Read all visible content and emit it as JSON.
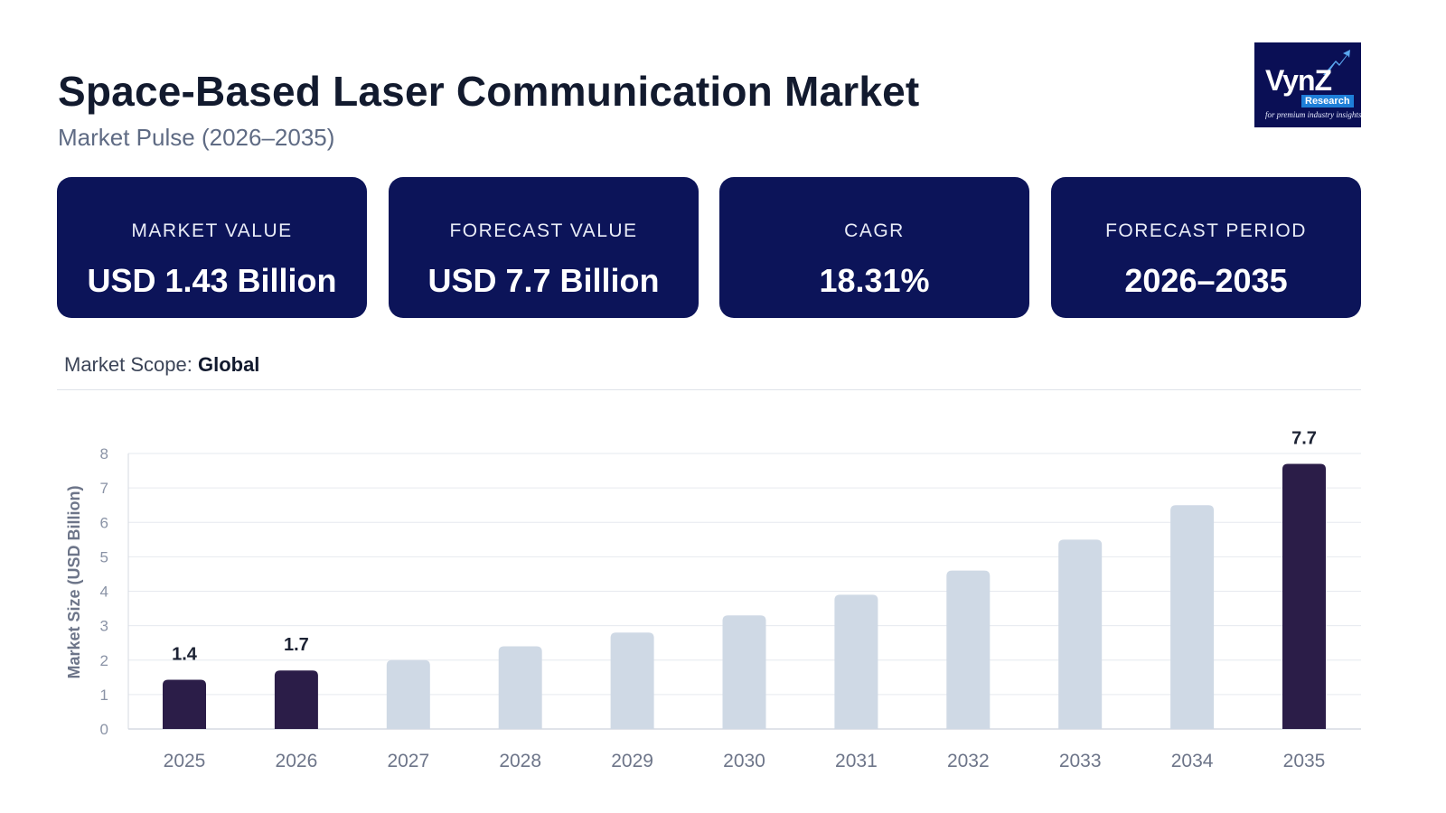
{
  "header": {
    "title": "Space-Based Laser Communication Market",
    "subtitle": "Market Pulse (2026–2035)"
  },
  "logo": {
    "brand": "VynZ",
    "sub": "Research",
    "tagline": "for premium industry insights"
  },
  "cards": [
    {
      "label": "MARKET VALUE",
      "value": "USD 1.43 Billion"
    },
    {
      "label": "FORECAST VALUE",
      "value": "USD 7.7 Billion"
    },
    {
      "label": "CAGR",
      "value": "18.31%"
    },
    {
      "label": "FORECAST PERIOD",
      "value": "2026–2035"
    }
  ],
  "scope": {
    "label": "Market Scope:",
    "value": "Global"
  },
  "colors": {
    "card_bg": "#0c1459",
    "highlight_bar": "#2b1d48",
    "muted_bar": "#cfd9e5"
  },
  "chart_data": {
    "type": "bar",
    "ylabel": "Market Size (USD Billion)",
    "xlabel": "",
    "ylim": [
      0,
      8
    ],
    "yticks": [
      0,
      1,
      2,
      3,
      4,
      5,
      6,
      7,
      8
    ],
    "grid": true,
    "categories": [
      "2025",
      "2026",
      "2027",
      "2028",
      "2029",
      "2030",
      "2031",
      "2032",
      "2033",
      "2034",
      "2035"
    ],
    "values": [
      1.43,
      1.7,
      2.0,
      2.4,
      2.8,
      3.3,
      3.9,
      4.6,
      5.5,
      6.5,
      7.7
    ],
    "highlighted": [
      true,
      true,
      false,
      false,
      false,
      false,
      false,
      false,
      false,
      false,
      true
    ],
    "data_labels": [
      "1.4",
      "1.7",
      "",
      "",
      "",
      "",
      "",
      "",
      "",
      "",
      "7.7"
    ]
  }
}
